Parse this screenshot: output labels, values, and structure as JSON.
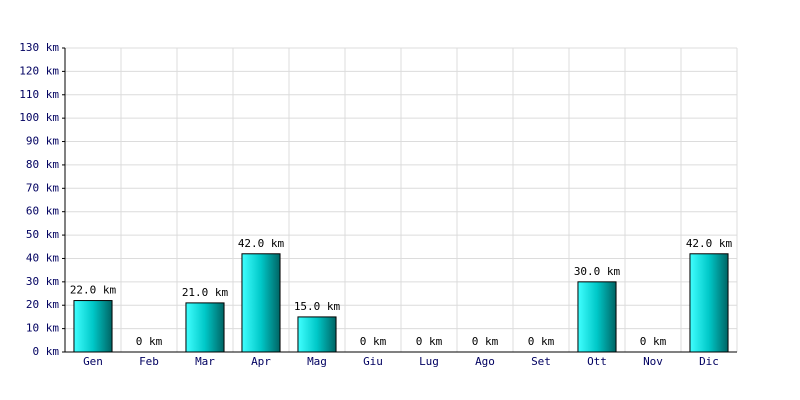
{
  "chart_data": {
    "type": "bar",
    "categories": [
      "Gen",
      "Feb",
      "Mar",
      "Apr",
      "Mag",
      "Giu",
      "Lug",
      "Ago",
      "Set",
      "Ott",
      "Nov",
      "Dic"
    ],
    "values": [
      22,
      0,
      21,
      42,
      15,
      0,
      0,
      0,
      0,
      30,
      0,
      42
    ],
    "value_labels": [
      "22.0 km",
      "0 km",
      "21.0 km",
      "42.0 km",
      "15.0 km",
      "0 km",
      "0 km",
      "0 km",
      "0 km",
      "30.0 km",
      "0 km",
      "42.0 km"
    ],
    "color": "#00c8c8",
    "ylim": [
      0,
      130
    ],
    "yticks": [
      {
        "value": 0,
        "label": "0 km"
      },
      {
        "value": 10,
        "label": "10 km"
      },
      {
        "value": 20,
        "label": "20 km"
      },
      {
        "value": 30,
        "label": "30 km"
      },
      {
        "value": 40,
        "label": "40 km"
      },
      {
        "value": 50,
        "label": "50 km"
      },
      {
        "value": 60,
        "label": "60 km"
      },
      {
        "value": 70,
        "label": "70 km"
      },
      {
        "value": 80,
        "label": "80 km"
      },
      {
        "value": 90,
        "label": "90 km"
      },
      {
        "value": 100,
        "label": "100 km"
      },
      {
        "value": 110,
        "label": "110 km"
      },
      {
        "value": 120,
        "label": "120 km"
      },
      {
        "value": 130,
        "label": "130 km"
      }
    ],
    "grid": true
  }
}
